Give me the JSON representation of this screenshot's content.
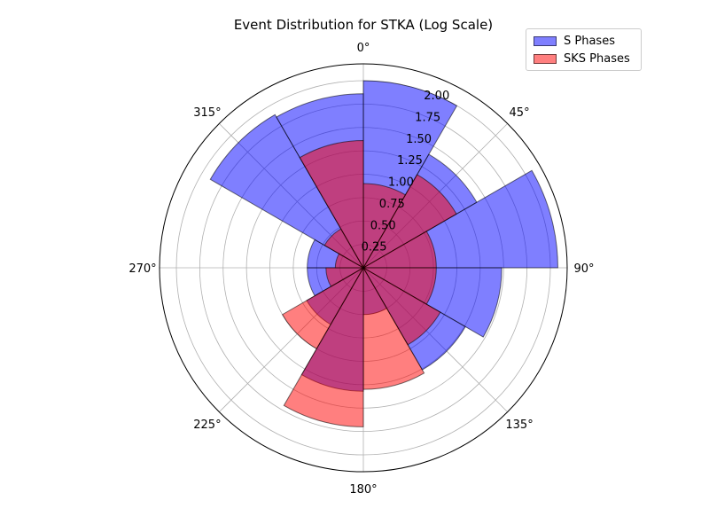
{
  "chart_data": {
    "type": "polar-bar",
    "title": "Event Distribution for STKA (Log Scale)",
    "theta_zero_location": "N",
    "theta_direction": "clockwise",
    "angle_tick_labels": [
      "0°",
      "45°",
      "90°",
      "135°",
      "180°",
      "225°",
      "270°",
      "315°"
    ],
    "radial_ticks": [
      0.25,
      0.5,
      0.75,
      1.0,
      1.25,
      1.5,
      1.75,
      2.0
    ],
    "radial_tick_labels": [
      "0.25",
      "0.50",
      "0.75",
      "1.00",
      "1.25",
      "1.50",
      "1.75",
      "2.00"
    ],
    "r_max": 2.18,
    "bin_starts_deg": [
      0,
      30,
      60,
      90,
      120,
      150,
      180,
      210,
      240,
      270,
      300,
      330
    ],
    "bin_width_deg": 30,
    "series": [
      {
        "name": "S Phases",
        "color": "#0000ff",
        "alpha": 0.5,
        "values": [
          2.0,
          1.4,
          2.08,
          1.48,
          1.26,
          0.5,
          1.32,
          0.7,
          0.6,
          0.6,
          1.89,
          1.86
        ]
      },
      {
        "name": "SKS Phases",
        "color": "#ff0000",
        "alpha": 0.5,
        "values": [
          0.9,
          1.15,
          0.78,
          0.78,
          0.95,
          1.3,
          1.7,
          1.0,
          0.4,
          0.3,
          0.48,
          1.36
        ]
      }
    ],
    "grid": true,
    "legend_position": "top-right"
  }
}
